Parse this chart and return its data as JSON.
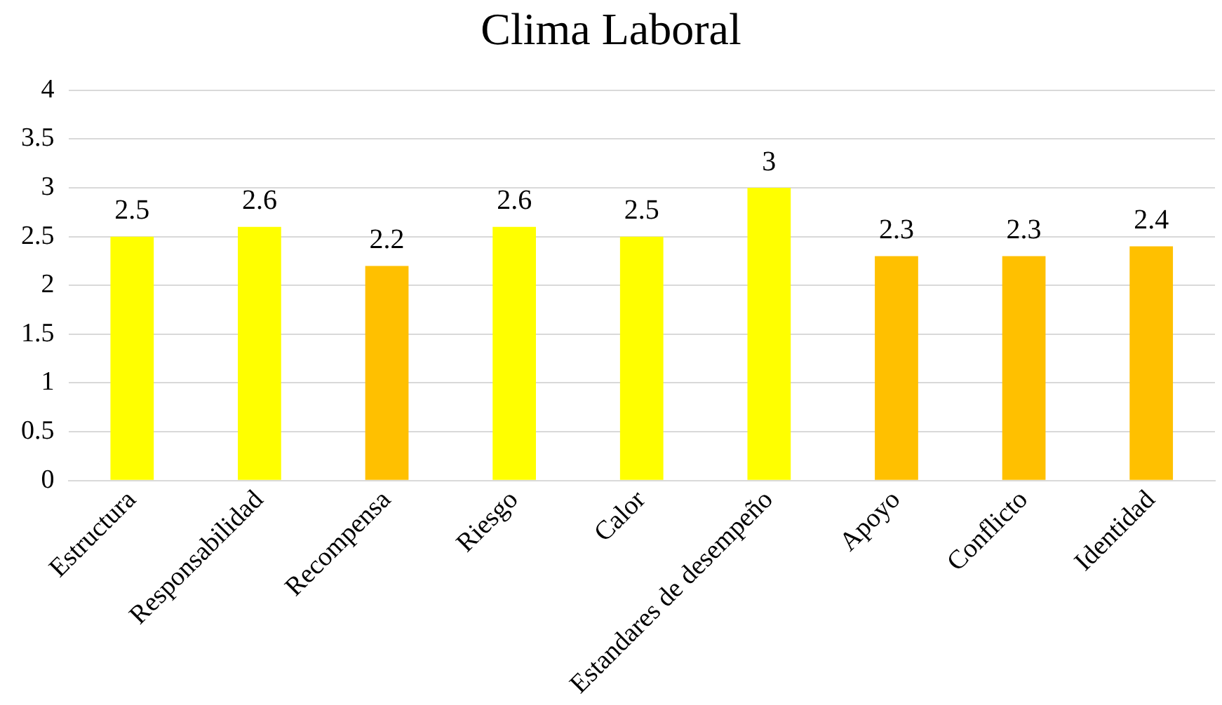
{
  "chart_data": {
    "type": "bar",
    "title": "Clima Laboral",
    "categories": [
      "Estructura",
      "Responsabilidad",
      "Recompensa",
      "Riesgo",
      "Calor",
      "Estandares de desempeño",
      "Apoyo",
      "Conflicto",
      "Identidad"
    ],
    "values": [
      2.5,
      2.6,
      2.2,
      2.6,
      2.5,
      3,
      2.3,
      2.3,
      2.4
    ],
    "colors": [
      "#ffff00",
      "#ffff00",
      "#ffc000",
      "#ffff00",
      "#ffff00",
      "#ffff00",
      "#ffc000",
      "#ffc000",
      "#ffc000"
    ],
    "ylim": [
      0,
      4
    ],
    "yticks": [
      0,
      0.5,
      1,
      1.5,
      2,
      2.5,
      3,
      3.5,
      4
    ],
    "grid": "y",
    "legend": false,
    "data_labels": true
  }
}
